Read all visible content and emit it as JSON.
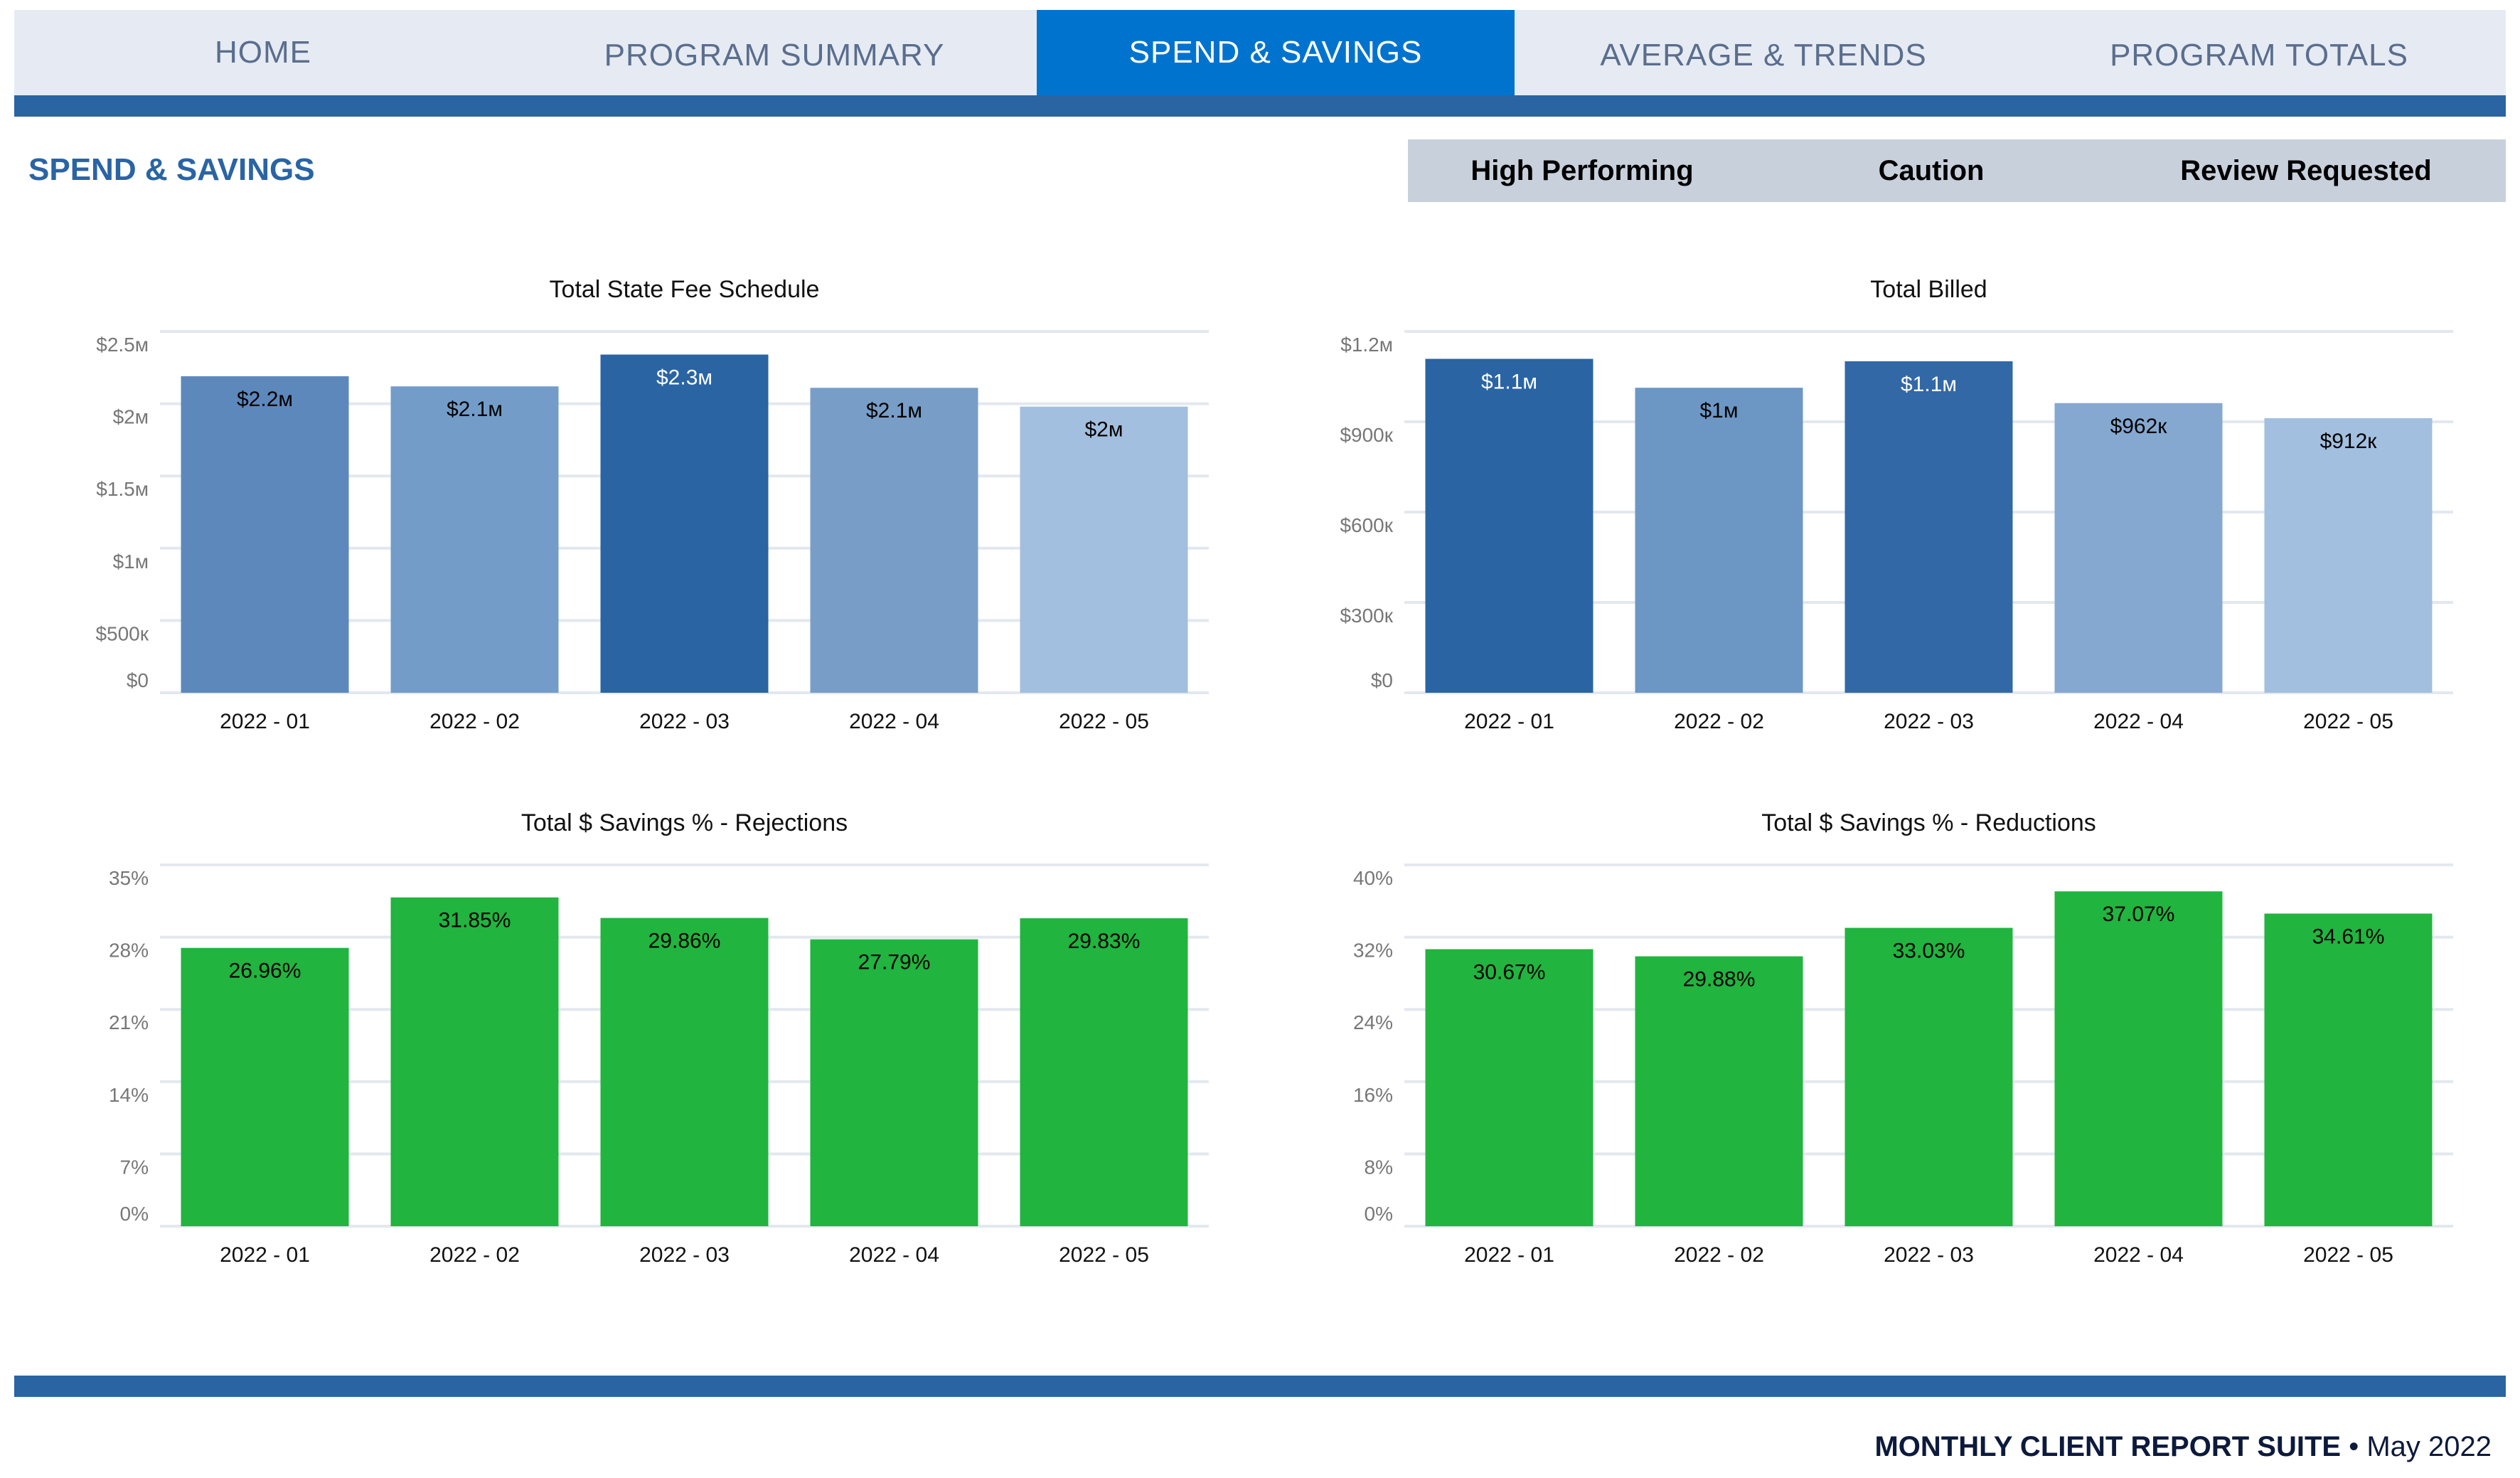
{
  "nav": {
    "tabs": [
      {
        "label": "HOME",
        "active": false
      },
      {
        "label": "PROGRAM SUMMARY",
        "active": false
      },
      {
        "label": "SPEND & SAVINGS",
        "active": true
      },
      {
        "label": "AVERAGE & TRENDS",
        "active": false
      },
      {
        "label": "PROGRAM TOTALS",
        "active": false
      }
    ]
  },
  "page": {
    "title": "SPEND & SAVINGS"
  },
  "legend": [
    {
      "label": "High Performing",
      "color": "#21b43f"
    },
    {
      "label": "Caution",
      "color": "#eeec47"
    },
    {
      "label": "Review Requested",
      "color": "#b30e0e"
    }
  ],
  "chart_data": [
    {
      "type": "bar",
      "title": "Total State Fee Schedule",
      "categories": [
        "2022 - 01",
        "2022 - 02",
        "2022 - 03",
        "2022 - 04",
        "2022 - 05"
      ],
      "values": [
        2190000,
        2120000,
        2340000,
        2110000,
        1980000
      ],
      "data_labels": [
        "$2.2м",
        "$2.1м",
        "$2.3м",
        "$2.1м",
        "$2м"
      ],
      "bar_colors": [
        "#5d88bb",
        "#739dc8",
        "#2a64a3",
        "#789ec8",
        "#a3bfdf"
      ],
      "label_colors": [
        "#000000",
        "#000000",
        "#ffffff",
        "#000000",
        "#000000"
      ],
      "yticks": [
        0,
        500000,
        1000000,
        1500000,
        2000000,
        2500000
      ],
      "ytick_labels": [
        "$0",
        "$500к",
        "$1м",
        "$1.5м",
        "$2м",
        "$2.5м"
      ],
      "ylim": [
        0,
        2500000
      ],
      "xlabel": "",
      "ylabel": "",
      "grid": true,
      "legend": "none"
    },
    {
      "type": "bar",
      "title": "Total Billed",
      "categories": [
        "2022 - 01",
        "2022 - 02",
        "2022 - 03",
        "2022 - 04",
        "2022 - 05"
      ],
      "values": [
        1109000,
        1013000,
        1101000,
        962000,
        912000
      ],
      "data_labels": [
        "$1.1м",
        "$1м",
        "$1.1м",
        "$962к",
        "$912к"
      ],
      "bar_colors": [
        "#2a64a3",
        "#6c97c4",
        "#3268a6",
        "#85a8d0",
        "#a3bfdf"
      ],
      "label_colors": [
        "#ffffff",
        "#000000",
        "#ffffff",
        "#000000",
        "#000000"
      ],
      "yticks": [
        0,
        300000,
        600000,
        900000,
        1200000
      ],
      "ytick_labels": [
        "$0",
        "$300к",
        "$600к",
        "$900к",
        "$1.2м"
      ],
      "ylim": [
        0,
        1200000
      ],
      "xlabel": "",
      "ylabel": "",
      "grid": true,
      "legend": "none"
    },
    {
      "type": "bar",
      "title": "Total $ Savings % - Rejections",
      "categories": [
        "2022 - 01",
        "2022 - 02",
        "2022 - 03",
        "2022 - 04",
        "2022 - 05"
      ],
      "values": [
        26.96,
        31.85,
        29.86,
        27.79,
        29.83
      ],
      "data_labels": [
        "26.96%",
        "31.85%",
        "29.86%",
        "27.79%",
        "29.83%"
      ],
      "bar_colors": [
        "#21b43f",
        "#21b43f",
        "#21b43f",
        "#21b43f",
        "#21b43f"
      ],
      "label_colors": [
        "#000000",
        "#000000",
        "#000000",
        "#000000",
        "#000000"
      ],
      "yticks": [
        0,
        7,
        14,
        21,
        28,
        35
      ],
      "ytick_labels": [
        "0%",
        "7%",
        "14%",
        "21%",
        "28%",
        "35%"
      ],
      "ylim": [
        0,
        35
      ],
      "xlabel": "",
      "ylabel": "",
      "grid": true,
      "legend": "none"
    },
    {
      "type": "bar",
      "title": "Total $ Savings % - Reductions",
      "categories": [
        "2022 - 01",
        "2022 - 02",
        "2022 - 03",
        "2022 - 04",
        "2022 - 05"
      ],
      "values": [
        30.67,
        29.88,
        33.03,
        37.07,
        34.61
      ],
      "data_labels": [
        "30.67%",
        "29.88%",
        "33.03%",
        "37.07%",
        "34.61%"
      ],
      "bar_colors": [
        "#21b43f",
        "#21b43f",
        "#21b43f",
        "#21b43f",
        "#21b43f"
      ],
      "label_colors": [
        "#000000",
        "#000000",
        "#000000",
        "#000000",
        "#000000"
      ],
      "yticks": [
        0,
        8,
        16,
        24,
        32,
        40
      ],
      "ytick_labels": [
        "0%",
        "8%",
        "16%",
        "24%",
        "32%",
        "40%"
      ],
      "ylim": [
        0,
        40
      ],
      "xlabel": "",
      "ylabel": "",
      "grid": true,
      "legend": "none"
    }
  ],
  "footer": {
    "suite": "MONTHLY CLIENT REPORT SUITE",
    "separator": "•",
    "period": "May 2022"
  }
}
